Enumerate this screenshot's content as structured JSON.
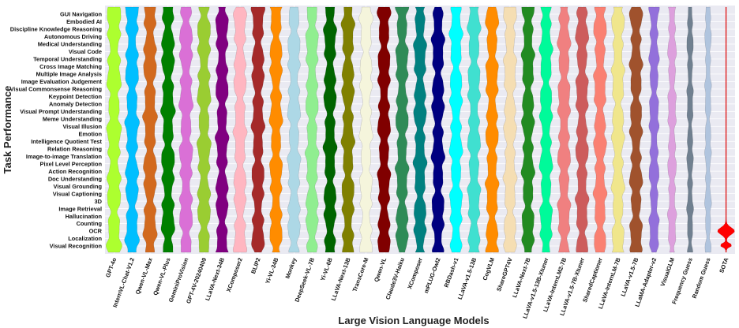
{
  "chart_data": {
    "type": "violin",
    "ylabel": "Task Performance",
    "xlabel": "Large Vision Language Models",
    "grid": true,
    "tasks": [
      "GUI Navigation",
      "Embodied AI",
      "Discipline Knowledge Reasoning",
      "Autonomous Driving",
      "Medical Understanding",
      "Visual Code",
      "Temporal Understanding",
      "Cross Image Matching",
      "Multiple Image Analysis",
      "Image Evaluation Judgement",
      "Visual Commonsense Reasoning",
      "Keypoint Detection",
      "Anomaly Detection",
      "Visual Prompt Understanding",
      "Meme Understanding",
      "Visual Illusion",
      "Emotion",
      "Intelligence Quotient Test",
      "Relation Reasoning",
      "Image-to-image Translation",
      "Pixel Level Perception",
      "Action Recognition",
      "Doc Understanding",
      "Visual Grounding",
      "Visual Captioning",
      "3D",
      "Image Retrieval",
      "Hallucination",
      "Counting",
      "OCR",
      "Localization",
      "Visual Recognition"
    ],
    "models": [
      {
        "name": "GPT-4o",
        "color": "#adff2f",
        "width": 1.0
      },
      {
        "name": "InternVL-Chat-V1.2",
        "color": "#00bfff",
        "width": 0.95
      },
      {
        "name": "Qwen-VL-Max",
        "color": "#d2691e",
        "width": 0.95
      },
      {
        "name": "Qwen-VL-Plus",
        "color": "#008000",
        "width": 0.95
      },
      {
        "name": "GeminiProVision",
        "color": "#da70d6",
        "width": 0.95
      },
      {
        "name": "GPT-4V-20240409",
        "color": "#9acd32",
        "width": 0.95
      },
      {
        "name": "LLaVA-Next-34B",
        "color": "#800080",
        "width": 0.9
      },
      {
        "name": "XComposer2",
        "color": "#ffb6c1",
        "width": 0.9
      },
      {
        "name": "BLIP2",
        "color": "#a52a2a",
        "width": 0.9
      },
      {
        "name": "Yi-VL-34B",
        "color": "#ff8c00",
        "width": 0.9
      },
      {
        "name": "Monkey",
        "color": "#add8e6",
        "width": 0.9
      },
      {
        "name": "DeepSeek-VL-7B",
        "color": "#90ee90",
        "width": 0.9
      },
      {
        "name": "Yi-VL-6B",
        "color": "#006400",
        "width": 0.9
      },
      {
        "name": "LLaVA-Next-13B",
        "color": "#808000",
        "width": 0.9
      },
      {
        "name": "TransCore-M",
        "color": "#f5f5dc",
        "width": 0.9
      },
      {
        "name": "Qwen-VL",
        "color": "#800000",
        "width": 0.9
      },
      {
        "name": "Claude3V-Haiku",
        "color": "#2e8b57",
        "width": 0.9
      },
      {
        "name": "XComposer",
        "color": "#008080",
        "width": 0.9
      },
      {
        "name": "mPLUG-Owl2",
        "color": "#000080",
        "width": 0.9
      },
      {
        "name": "RBDash-v1",
        "color": "#00ffff",
        "width": 0.9
      },
      {
        "name": "LLaVA-v1.5-13B",
        "color": "#40e0d0",
        "width": 0.9
      },
      {
        "name": "CogVLM",
        "color": "#ff8c00",
        "width": 0.9
      },
      {
        "name": "ShareGPT4V",
        "color": "#f5deb3",
        "width": 0.9
      },
      {
        "name": "LLaVA-Next-7B",
        "color": "#228b22",
        "width": 0.9
      },
      {
        "name": "LLaVA-v1.5-13B-Xtuner",
        "color": "#00fa9a",
        "width": 0.9
      },
      {
        "name": "LLaVA-InternLM2-7B",
        "color": "#f08080",
        "width": 0.9
      },
      {
        "name": "LLaVA-v1.5-7B-Xtuner",
        "color": "#cd5c5c",
        "width": 0.9
      },
      {
        "name": "SharedCaptioner",
        "color": "#fa8072",
        "width": 0.9
      },
      {
        "name": "LLaVA-InternLM-7B",
        "color": "#f0e68c",
        "width": 0.9
      },
      {
        "name": "LLaVA-v1.5-7B",
        "color": "#a0522d",
        "width": 0.9
      },
      {
        "name": "LLaMA-Adapter-v2",
        "color": "#9370db",
        "width": 0.7
      },
      {
        "name": "VisualGLM",
        "color": "#dda0dd",
        "width": 0.6
      },
      {
        "name": "Frequency Guess",
        "color": "#708090",
        "width": 0.45
      },
      {
        "name": "Random Guess",
        "color": "#b0c4de",
        "width": 0.45
      },
      {
        "name": "SOTA",
        "color": "#ff0000",
        "width": 0.1
      }
    ]
  }
}
